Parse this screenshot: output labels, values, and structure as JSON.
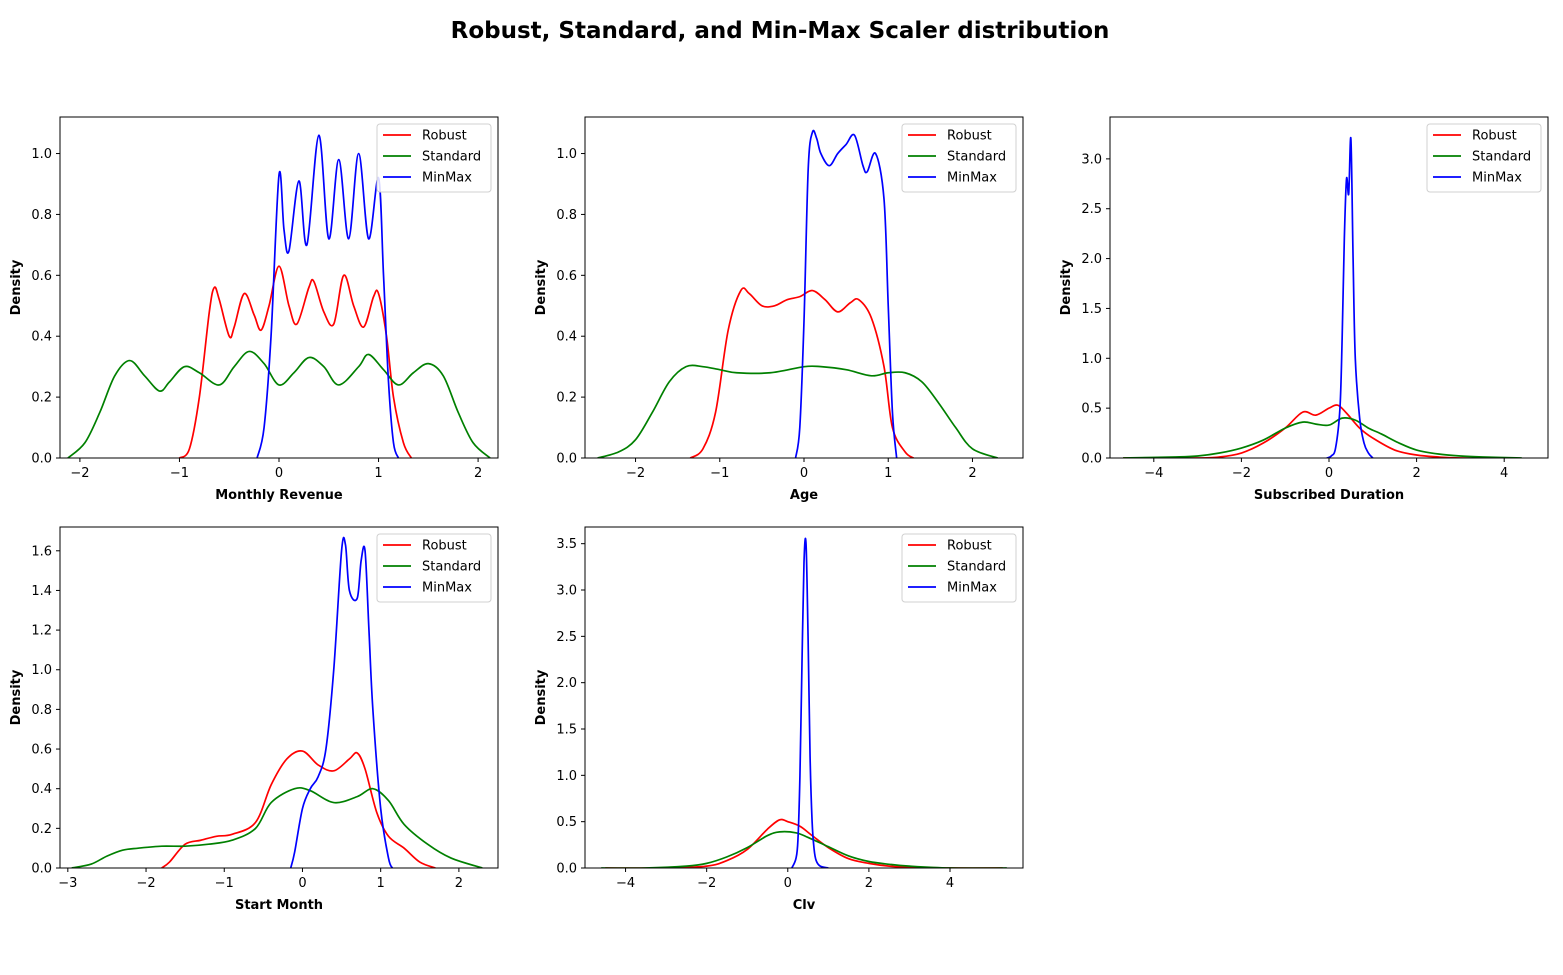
{
  "figure": {
    "title": "Robust, Standard, and Min-Max Scaler distribution"
  },
  "colors": {
    "Robust": "#ff0000",
    "Standard": "#008000",
    "MinMax": "#0000ff",
    "axis": "#000000"
  },
  "chart_data": [
    {
      "type": "line",
      "xlabel": "Monthly Revenue",
      "ylabel": "Density",
      "xlim": [
        -2.2,
        2.2
      ],
      "ylim": [
        0,
        1.12
      ],
      "xticks": [
        -2,
        -1,
        0,
        1,
        2
      ],
      "yticks": [
        0.0,
        0.2,
        0.4,
        0.6,
        0.8,
        1.0
      ],
      "grid": false,
      "legend": "top-right",
      "series": [
        {
          "name": "Robust",
          "x": [
            -1.0,
            -0.9,
            -0.8,
            -0.7,
            -0.65,
            -0.6,
            -0.5,
            -0.45,
            -0.35,
            -0.25,
            -0.18,
            -0.1,
            0,
            0.1,
            0.18,
            0.3,
            0.35,
            0.45,
            0.55,
            0.65,
            0.75,
            0.85,
            0.95,
            1.0,
            1.08,
            1.15,
            1.25,
            1.33
          ],
          "y": [
            0.0,
            0.03,
            0.2,
            0.48,
            0.56,
            0.52,
            0.4,
            0.43,
            0.54,
            0.47,
            0.42,
            0.5,
            0.63,
            0.5,
            0.44,
            0.56,
            0.58,
            0.48,
            0.44,
            0.6,
            0.5,
            0.43,
            0.53,
            0.54,
            0.4,
            0.2,
            0.05,
            0.0
          ]
        },
        {
          "name": "Standard",
          "x": [
            -2.12,
            -1.95,
            -1.8,
            -1.65,
            -1.5,
            -1.35,
            -1.2,
            -1.1,
            -0.95,
            -0.8,
            -0.6,
            -0.45,
            -0.3,
            -0.15,
            0,
            0.15,
            0.3,
            0.45,
            0.6,
            0.8,
            0.9,
            1.05,
            1.2,
            1.35,
            1.5,
            1.65,
            1.8,
            1.95,
            2.12
          ],
          "y": [
            0.0,
            0.05,
            0.15,
            0.27,
            0.32,
            0.27,
            0.22,
            0.25,
            0.3,
            0.28,
            0.24,
            0.3,
            0.35,
            0.31,
            0.24,
            0.28,
            0.33,
            0.3,
            0.24,
            0.3,
            0.34,
            0.29,
            0.24,
            0.28,
            0.31,
            0.27,
            0.15,
            0.05,
            0.0
          ]
        },
        {
          "name": "MinMax",
          "x": [
            -0.22,
            -0.15,
            -0.08,
            0,
            0.05,
            0.1,
            0.2,
            0.28,
            0.4,
            0.5,
            0.6,
            0.7,
            0.8,
            0.9,
            1.0,
            1.05,
            1.1,
            1.15,
            1.2
          ],
          "y": [
            0.0,
            0.1,
            0.4,
            0.93,
            0.75,
            0.68,
            0.91,
            0.7,
            1.06,
            0.72,
            0.98,
            0.72,
            1.0,
            0.72,
            0.92,
            0.6,
            0.25,
            0.05,
            0.0
          ]
        }
      ]
    },
    {
      "type": "line",
      "xlabel": "Age",
      "ylabel": "Density",
      "xlim": [
        -2.6,
        2.6
      ],
      "ylim": [
        0,
        1.12
      ],
      "xticks": [
        -2,
        -1,
        0,
        1,
        2
      ],
      "yticks": [
        0.0,
        0.2,
        0.4,
        0.6,
        0.8,
        1.0
      ],
      "grid": false,
      "legend": "top-right",
      "series": [
        {
          "name": "Robust",
          "x": [
            -1.35,
            -1.2,
            -1.05,
            -0.9,
            -0.75,
            -0.65,
            -0.5,
            -0.35,
            -0.2,
            -0.05,
            0.1,
            0.25,
            0.4,
            0.55,
            0.65,
            0.8,
            0.95,
            1.05,
            1.2,
            1.3
          ],
          "y": [
            0.0,
            0.03,
            0.15,
            0.42,
            0.55,
            0.54,
            0.5,
            0.5,
            0.52,
            0.53,
            0.55,
            0.52,
            0.48,
            0.51,
            0.52,
            0.46,
            0.3,
            0.1,
            0.02,
            0.0
          ]
        },
        {
          "name": "Standard",
          "x": [
            -2.45,
            -2.2,
            -2.0,
            -1.8,
            -1.6,
            -1.4,
            -1.2,
            -1.0,
            -0.8,
            -0.4,
            0,
            0.2,
            0.5,
            0.8,
            1.0,
            1.2,
            1.4,
            1.6,
            1.8,
            2.0,
            2.3
          ],
          "y": [
            0.0,
            0.02,
            0.06,
            0.15,
            0.25,
            0.3,
            0.3,
            0.29,
            0.28,
            0.28,
            0.3,
            0.3,
            0.29,
            0.27,
            0.28,
            0.28,
            0.25,
            0.18,
            0.1,
            0.03,
            0.0
          ]
        },
        {
          "name": "MinMax",
          "x": [
            -0.1,
            -0.05,
            0,
            0.05,
            0.1,
            0.15,
            0.2,
            0.3,
            0.4,
            0.5,
            0.6,
            0.7,
            0.75,
            0.85,
            0.95,
            1.0,
            1.05,
            1.1
          ],
          "y": [
            0.0,
            0.1,
            0.45,
            0.95,
            1.07,
            1.05,
            1.0,
            0.96,
            1.0,
            1.03,
            1.06,
            0.96,
            0.94,
            1.0,
            0.85,
            0.5,
            0.15,
            0.0
          ]
        }
      ]
    },
    {
      "type": "line",
      "xlabel": "Subscribed Duration",
      "ylabel": "Density",
      "xlim": [
        -5.0,
        5.0
      ],
      "ylim": [
        0,
        3.42
      ],
      "xticks": [
        -4,
        -2,
        0,
        2,
        4
      ],
      "yticks": [
        0.0,
        0.5,
        1.0,
        1.5,
        2.0,
        2.5,
        3.0
      ],
      "grid": false,
      "legend": "top-right",
      "series": [
        {
          "name": "Robust",
          "x": [
            -4.7,
            -3.0,
            -2.5,
            -2.0,
            -1.5,
            -1.0,
            -0.6,
            -0.3,
            0,
            0.2,
            0.4,
            0.7,
            1.0,
            1.5,
            2.0,
            2.5,
            3.0,
            4.0
          ],
          "y": [
            0.0,
            0.0,
            0.01,
            0.05,
            0.15,
            0.3,
            0.46,
            0.43,
            0.5,
            0.53,
            0.45,
            0.3,
            0.2,
            0.08,
            0.03,
            0.01,
            0.0,
            0.0
          ]
        },
        {
          "name": "Standard",
          "x": [
            -4.7,
            -3.5,
            -3.0,
            -2.5,
            -2.0,
            -1.5,
            -1.0,
            -0.6,
            -0.3,
            0,
            0.3,
            0.6,
            0.9,
            1.2,
            1.6,
            2.0,
            2.5,
            3.0,
            3.5,
            4.4
          ],
          "y": [
            0.0,
            0.01,
            0.02,
            0.05,
            0.1,
            0.18,
            0.3,
            0.36,
            0.34,
            0.33,
            0.4,
            0.38,
            0.3,
            0.24,
            0.15,
            0.08,
            0.04,
            0.02,
            0.01,
            0.0
          ]
        },
        {
          "name": "MinMax",
          "x": [
            -0.05,
            0.05,
            0.15,
            0.25,
            0.3,
            0.35,
            0.4,
            0.45,
            0.5,
            0.55,
            0.6,
            0.7,
            0.8,
            0.9,
            1.0
          ],
          "y": [
            0.0,
            0.02,
            0.1,
            0.5,
            1.2,
            2.2,
            2.8,
            2.65,
            3.2,
            2.0,
            1.0,
            0.4,
            0.15,
            0.05,
            0.0
          ]
        }
      ]
    },
    {
      "type": "line",
      "xlabel": "Start Month",
      "ylabel": "Density",
      "xlim": [
        -3.1,
        2.5
      ],
      "ylim": [
        0,
        1.72
      ],
      "xticks": [
        -3,
        -2,
        -1,
        0,
        1,
        2
      ],
      "yticks": [
        0.0,
        0.2,
        0.4,
        0.6,
        0.8,
        1.0,
        1.2,
        1.4,
        1.6
      ],
      "grid": false,
      "legend": "top-right",
      "series": [
        {
          "name": "Robust",
          "x": [
            -1.8,
            -1.7,
            -1.5,
            -1.3,
            -1.1,
            -0.9,
            -0.6,
            -0.4,
            -0.2,
            0,
            0.2,
            0.4,
            0.6,
            0.7,
            0.8,
            0.95,
            1.1,
            1.3,
            1.5,
            1.7
          ],
          "y": [
            0.0,
            0.03,
            0.12,
            0.14,
            0.16,
            0.17,
            0.23,
            0.42,
            0.55,
            0.59,
            0.52,
            0.49,
            0.55,
            0.58,
            0.5,
            0.28,
            0.16,
            0.1,
            0.03,
            0.0
          ]
        },
        {
          "name": "Standard",
          "x": [
            -2.95,
            -2.7,
            -2.5,
            -2.3,
            -2.1,
            -1.8,
            -1.5,
            -1.2,
            -0.9,
            -0.6,
            -0.4,
            -0.1,
            0.1,
            0.4,
            0.7,
            0.9,
            1.1,
            1.3,
            1.6,
            1.9,
            2.3
          ],
          "y": [
            0.0,
            0.02,
            0.06,
            0.09,
            0.1,
            0.11,
            0.11,
            0.12,
            0.14,
            0.2,
            0.33,
            0.4,
            0.39,
            0.33,
            0.36,
            0.4,
            0.34,
            0.22,
            0.12,
            0.05,
            0.0
          ]
        },
        {
          "name": "MinMax",
          "x": [
            -0.15,
            -0.1,
            0,
            0.1,
            0.2,
            0.3,
            0.4,
            0.5,
            0.55,
            0.6,
            0.7,
            0.75,
            0.8,
            0.85,
            0.9,
            1.0,
            1.1,
            1.15
          ],
          "y": [
            0.0,
            0.08,
            0.3,
            0.4,
            0.46,
            0.6,
            1.0,
            1.6,
            1.63,
            1.4,
            1.36,
            1.55,
            1.6,
            1.2,
            0.8,
            0.3,
            0.05,
            0.0
          ]
        }
      ]
    },
    {
      "type": "line",
      "xlabel": "Clv",
      "ylabel": "Density",
      "xlim": [
        -5.0,
        5.8
      ],
      "ylim": [
        0,
        3.68
      ],
      "xticks": [
        -4,
        -2,
        0,
        2,
        4
      ],
      "yticks": [
        0.0,
        0.5,
        1.0,
        1.5,
        2.0,
        2.5,
        3.0,
        3.5
      ],
      "grid": false,
      "legend": "top-right",
      "series": [
        {
          "name": "Robust",
          "x": [
            -4.5,
            -3.0,
            -2.0,
            -1.5,
            -1.0,
            -0.5,
            -0.2,
            0,
            0.3,
            0.6,
            1.0,
            1.5,
            2.0,
            2.5,
            3.0,
            4.0,
            5.3
          ],
          "y": [
            0.0,
            0.0,
            0.02,
            0.08,
            0.2,
            0.42,
            0.52,
            0.5,
            0.45,
            0.35,
            0.22,
            0.1,
            0.05,
            0.02,
            0.01,
            0.0,
            0.0
          ]
        },
        {
          "name": "Standard",
          "x": [
            -4.6,
            -3.5,
            -2.5,
            -2.0,
            -1.5,
            -1.0,
            -0.5,
            -0.2,
            0.2,
            0.5,
            1.0,
            1.5,
            2.0,
            2.5,
            3.0,
            4.0,
            5.4
          ],
          "y": [
            0.0,
            0.0,
            0.02,
            0.05,
            0.12,
            0.22,
            0.35,
            0.39,
            0.38,
            0.33,
            0.23,
            0.13,
            0.07,
            0.04,
            0.02,
            0.0,
            0.0
          ]
        },
        {
          "name": "MinMax",
          "x": [
            0.1,
            0.2,
            0.25,
            0.3,
            0.35,
            0.4,
            0.45,
            0.5,
            0.55,
            0.6,
            0.65,
            0.7,
            0.8,
            1.0
          ],
          "y": [
            0.0,
            0.1,
            0.3,
            1.0,
            2.2,
            3.3,
            3.5,
            2.5,
            1.2,
            0.5,
            0.2,
            0.08,
            0.02,
            0.0
          ]
        }
      ]
    }
  ]
}
